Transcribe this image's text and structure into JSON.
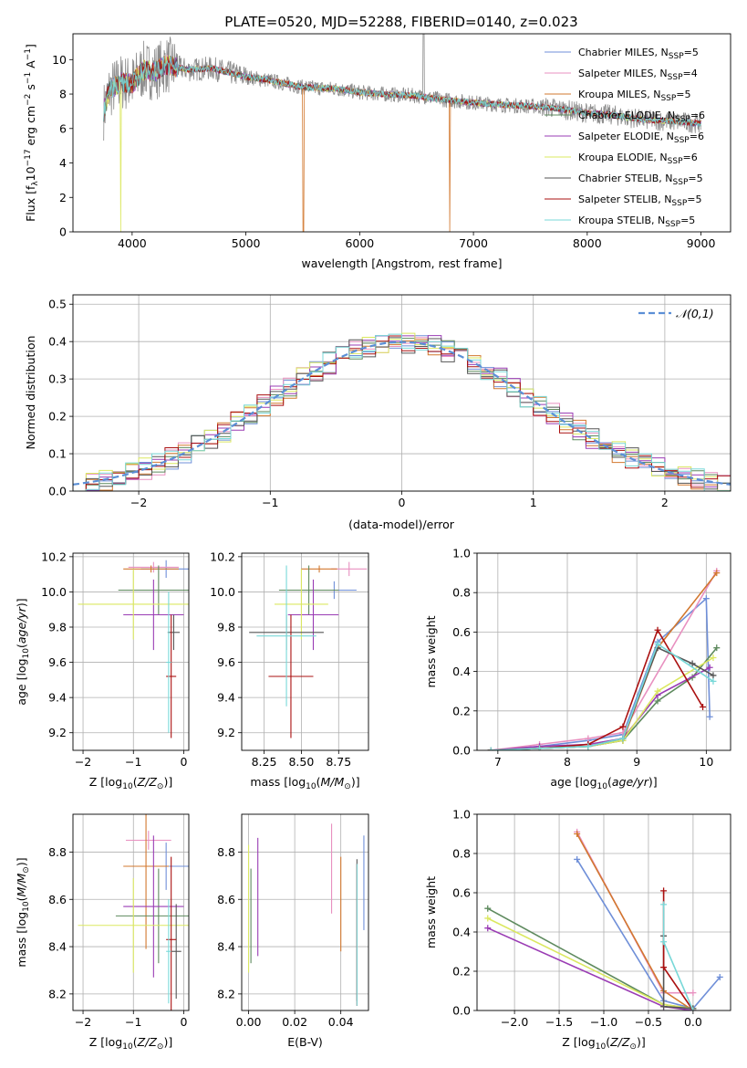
{
  "figure_title": "PLATE=0520, MJD=52288, FIBERID=0140, z=0.023",
  "colors": {
    "Chabrier MILES": "#6f8fd8",
    "Salpeter MILES": "#e890c0",
    "Kroupa MILES": "#d2782f",
    "Chabrier ELODIE": "#5e8a5e",
    "Salpeter ELODIE": "#9a3cb4",
    "Kroupa ELODIE": "#dbe860",
    "Chabrier STELIB": "#555555",
    "Salpeter STELIB": "#aa1010",
    "Kroupa STELIB": "#78d8d8",
    "gauss": "#5b8fd6",
    "data": "#8c8c8c"
  },
  "chart_data": [
    {
      "type": "line",
      "title": "PLATE=0520, MJD=52288, FIBERID=0140, z=0.023",
      "xlabel": "wavelength [Angstrom, rest frame]",
      "ylabel_parts": [
        "Flux [f",
        "λ",
        "10",
        "−17",
        " erg cm",
        "−2",
        " s",
        "−1",
        " A",
        "−1",
        "]"
      ],
      "xlim": [
        3480,
        9260
      ],
      "ylim": [
        0,
        11.5
      ],
      "xticks": [
        4000,
        5000,
        6000,
        7000,
        8000,
        9000
      ],
      "yticks": [
        0,
        2,
        4,
        6,
        8,
        10
      ],
      "legend_position": "top-right",
      "legend": [
        {
          "name": "Chabrier MILES",
          "nssp": "5"
        },
        {
          "name": "Salpeter MILES",
          "nssp": "4"
        },
        {
          "name": "Kroupa MILES",
          "nssp": "5"
        },
        {
          "name": "Chabrier ELODIE",
          "nssp": "6"
        },
        {
          "name": "Salpeter ELODIE",
          "nssp": "6"
        },
        {
          "name": "Kroupa ELODIE",
          "nssp": "6"
        },
        {
          "name": "Chabrier STELIB",
          "nssp": "5"
        },
        {
          "name": "Salpeter STELIB",
          "nssp": "5"
        },
        {
          "name": "Kroupa STELIB",
          "nssp": "5"
        }
      ],
      "legend_nssp_label": [
        "N",
        "SSP",
        "="
      ],
      "model_curve": {
        "x": [
          3750,
          3800,
          3900,
          4000,
          4100,
          4200,
          4300,
          4500,
          4700,
          5000,
          5200,
          5500,
          5800,
          6000,
          6200,
          6500,
          6700,
          7000,
          7300,
          7500,
          7700,
          8000,
          8200,
          8500,
          8800,
          9000
        ],
        "y": [
          7.0,
          8.2,
          8.7,
          8.6,
          9.4,
          9.3,
          9.7,
          9.4,
          9.5,
          9.0,
          8.8,
          8.4,
          8.3,
          8.1,
          8.0,
          7.9,
          7.7,
          7.5,
          7.35,
          7.3,
          7.2,
          6.9,
          6.8,
          6.5,
          6.4,
          6.3
        ]
      },
      "data_noise": {
        "x_start": 3750,
        "x_end": 9000,
        "step": 4
      },
      "absorption_features": [
        {
          "x": 3900,
          "series": "Kroupa ELODIE",
          "depth": 0
        },
        {
          "x": 5505,
          "series": "Kroupa MILES",
          "depth": 0
        },
        {
          "x": 6790,
          "series": "Kroupa MILES",
          "depth": 0
        },
        {
          "x": 7420,
          "series": "Kroupa MILES",
          "depth": 0.5
        }
      ]
    },
    {
      "type": "step",
      "xlabel": "(data-model)/error",
      "ylabel": "Normed distribution",
      "xlim": [
        -2.5,
        2.5
      ],
      "ylim": [
        0,
        0.525
      ],
      "xticks": [
        -2,
        -1,
        0,
        1,
        2
      ],
      "yticks": [
        0.0,
        0.1,
        0.2,
        0.3,
        0.4,
        0.5
      ],
      "grid": true,
      "bin_width": 0.1,
      "reference": {
        "name": "𝒩(0,1)",
        "mean": 0,
        "sigma": 1,
        "style": "dashed"
      },
      "legend_position": "top-right"
    },
    {
      "type": "scatter",
      "xlabel_parts": [
        "Z [log",
        "10",
        "(",
        "Z/Z",
        "⊙",
        ")]"
      ],
      "ylabel_parts": [
        "age  [log",
        "10",
        "(",
        "age/yr",
        ")]"
      ],
      "xlim": [
        -2.2,
        0.1
      ],
      "ylim": [
        9.1,
        10.22
      ],
      "xticks": [
        -2,
        -1,
        0
      ],
      "yticks": [
        9.2,
        9.4,
        9.6,
        9.8,
        10.0,
        10.2
      ],
      "points": [
        {
          "series": "Chabrier MILES",
          "x": -0.35,
          "xerr": 0.5,
          "y": 10.13,
          "yerr": 0.05
        },
        {
          "series": "Salpeter MILES",
          "x": -0.6,
          "xerr": 0.5,
          "y": 10.14,
          "yerr": 0.03
        },
        {
          "series": "Kroupa MILES",
          "x": -0.65,
          "xerr": 0.55,
          "y": 10.13,
          "yerr": 0.02
        },
        {
          "series": "Chabrier ELODIE",
          "x": -0.5,
          "xerr": 0.8,
          "y": 10.01,
          "yerr": 0.14
        },
        {
          "series": "Salpeter ELODIE",
          "x": -0.6,
          "xerr": 0.6,
          "y": 9.87,
          "yerr": 0.2
        },
        {
          "series": "Kroupa ELODIE",
          "x": -1.0,
          "xerr": 1.1,
          "y": 9.93,
          "yerr": 0.2
        },
        {
          "series": "Chabrier STELIB",
          "x": -0.2,
          "xerr": 0.12,
          "y": 9.77,
          "yerr": 0.1
        },
        {
          "series": "Salpeter STELIB",
          "x": -0.25,
          "xerr": 0.1,
          "y": 9.52,
          "yerr": 0.35
        },
        {
          "series": "Kroupa STELIB",
          "x": -0.3,
          "xerr": 0.05,
          "y": 9.6,
          "yerr": 0.4
        }
      ]
    },
    {
      "type": "scatter",
      "xlabel_parts": [
        "mass [log",
        "10",
        "(",
        "M/M",
        "⊙",
        ")]"
      ],
      "ylabel": "",
      "xlim": [
        8.1,
        8.95
      ],
      "ylim": [
        9.1,
        10.22
      ],
      "xticks": [
        8.25,
        8.5,
        8.75
      ],
      "yticks": [
        9.2,
        9.4,
        9.6,
        9.8,
        10.0,
        10.2
      ],
      "points": [
        {
          "series": "Chabrier MILES",
          "x": 8.72,
          "xerr": 0.15,
          "y": 10.01,
          "yerr": 0.05
        },
        {
          "series": "Salpeter MILES",
          "x": 8.82,
          "xerr": 0.12,
          "y": 10.13,
          "yerr": 0.04
        },
        {
          "series": "Kroupa MILES",
          "x": 8.62,
          "xerr": 0.12,
          "y": 10.13,
          "yerr": 0.02
        },
        {
          "series": "Chabrier ELODIE",
          "x": 8.55,
          "xerr": 0.2,
          "y": 10.01,
          "yerr": 0.14
        },
        {
          "series": "Salpeter ELODIE",
          "x": 8.58,
          "xerr": 0.17,
          "y": 9.87,
          "yerr": 0.2
        },
        {
          "series": "Kroupa ELODIE",
          "x": 8.5,
          "xerr": 0.18,
          "y": 9.93,
          "yerr": 0.2
        },
        {
          "series": "Chabrier STELIB",
          "x": 8.4,
          "xerr": 0.25,
          "y": 9.77,
          "yerr": 0.1
        },
        {
          "series": "Salpeter STELIB",
          "x": 8.43,
          "xerr": 0.15,
          "y": 9.52,
          "yerr": 0.35
        },
        {
          "series": "Kroupa STELIB",
          "x": 8.4,
          "xerr": 0.2,
          "y": 9.75,
          "yerr": 0.4
        }
      ]
    },
    {
      "type": "line",
      "xlabel_parts": [
        "age  [log",
        "10",
        "(",
        "age/yr",
        ")]"
      ],
      "ylabel": "mass weight",
      "xlim": [
        6.7,
        10.35
      ],
      "ylim": [
        0,
        1.0
      ],
      "xticks": [
        7,
        8,
        9,
        10
      ],
      "yticks": [
        0.0,
        0.2,
        0.4,
        0.6,
        0.8,
        1.0
      ],
      "grid": true,
      "series": [
        {
          "name": "Chabrier MILES",
          "x": [
            6.9,
            7.6,
            8.3,
            8.8,
            9.3,
            10.0,
            10.05
          ],
          "y": [
            0.0,
            0.02,
            0.05,
            0.08,
            0.55,
            0.77,
            0.17
          ]
        },
        {
          "name": "Salpeter MILES",
          "x": [
            6.9,
            7.6,
            8.3,
            8.8,
            10.15
          ],
          "y": [
            0.0,
            0.03,
            0.06,
            0.09,
            0.91
          ]
        },
        {
          "name": "Kroupa MILES",
          "x": [
            6.9,
            7.6,
            8.3,
            8.8,
            9.3,
            10.15
          ],
          "y": [
            0.0,
            0.01,
            0.02,
            0.05,
            0.52,
            0.9
          ]
        },
        {
          "name": "Chabrier ELODIE",
          "x": [
            6.9,
            7.6,
            8.3,
            8.8,
            9.3,
            9.8,
            10.15
          ],
          "y": [
            0.0,
            0.01,
            0.02,
            0.05,
            0.25,
            0.37,
            0.52
          ]
        },
        {
          "name": "Salpeter ELODIE",
          "x": [
            6.9,
            7.6,
            8.3,
            8.8,
            9.3,
            10.05
          ],
          "y": [
            0.0,
            0.02,
            0.03,
            0.06,
            0.28,
            0.42
          ]
        },
        {
          "name": "Kroupa ELODIE",
          "x": [
            6.9,
            7.6,
            8.3,
            8.8,
            9.3,
            10.1
          ],
          "y": [
            0.0,
            0.01,
            0.02,
            0.05,
            0.3,
            0.47
          ]
        },
        {
          "name": "Chabrier STELIB",
          "x": [
            6.9,
            7.6,
            8.3,
            8.8,
            9.3,
            9.8,
            10.1
          ],
          "y": [
            0.0,
            0.01,
            0.02,
            0.06,
            0.52,
            0.44,
            0.38
          ]
        },
        {
          "name": "Salpeter STELIB",
          "x": [
            6.9,
            7.6,
            8.3,
            8.8,
            9.3,
            9.95
          ],
          "y": [
            0.0,
            0.01,
            0.03,
            0.12,
            0.61,
            0.22
          ]
        },
        {
          "name": "Kroupa STELIB",
          "x": [
            6.9,
            7.6,
            8.3,
            8.8,
            9.3,
            10.1
          ],
          "y": [
            0.0,
            0.01,
            0.02,
            0.06,
            0.54,
            0.35
          ]
        }
      ]
    },
    {
      "type": "scatter",
      "xlabel_parts": [
        "Z [log",
        "10",
        "(",
        "Z/Z",
        "⊙",
        ")]"
      ],
      "ylabel_parts": [
        "mass [log",
        "10",
        "(",
        "M/M",
        "⊙",
        ")]"
      ],
      "xlim": [
        -2.2,
        0.1
      ],
      "ylim": [
        8.13,
        8.96
      ],
      "xticks": [
        -2,
        -1,
        0
      ],
      "yticks": [
        8.2,
        8.4,
        8.6,
        8.8
      ],
      "points": [
        {
          "series": "Chabrier MILES",
          "x": -0.35,
          "xerr": 0.5,
          "y": 8.74,
          "yerr": 0.1
        },
        {
          "series": "Salpeter MILES",
          "x": -0.7,
          "xerr": 0.45,
          "y": 8.85,
          "yerr": 0.04
        },
        {
          "series": "Kroupa MILES",
          "x": -0.75,
          "xerr": 0.45,
          "y": 8.74,
          "yerr": 0.35
        },
        {
          "series": "Chabrier ELODIE",
          "x": -0.5,
          "xerr": 0.85,
          "y": 8.53,
          "yerr": 0.2
        },
        {
          "series": "Salpeter ELODIE",
          "x": -0.6,
          "xerr": 0.6,
          "y": 8.57,
          "yerr": 0.3
        },
        {
          "series": "Kroupa ELODIE",
          "x": -1.0,
          "xerr": 1.1,
          "y": 8.49,
          "yerr": 0.2
        },
        {
          "series": "Chabrier STELIB",
          "x": -0.15,
          "xerr": 0.1,
          "y": 8.38,
          "yerr": 0.2
        },
        {
          "series": "Salpeter STELIB",
          "x": -0.25,
          "xerr": 0.1,
          "y": 8.43,
          "yerr": 0.35
        },
        {
          "series": "Kroupa STELIB",
          "x": -0.3,
          "xerr": 0.05,
          "y": 8.38,
          "yerr": 0.22
        }
      ]
    },
    {
      "type": "scatter",
      "xlabel": "E(B-V)",
      "ylabel": "",
      "xlim": [
        -0.003,
        0.052
      ],
      "ylim": [
        8.13,
        8.96
      ],
      "xticks": [
        0.0,
        0.02,
        0.04
      ],
      "yticks": [
        8.2,
        8.4,
        8.6,
        8.8
      ],
      "points": [
        {
          "series": "Chabrier MILES",
          "x": 0.05,
          "y": 8.67,
          "yerr": 0.2
        },
        {
          "series": "Salpeter MILES",
          "x": 0.036,
          "y": 8.73,
          "yerr": 0.19
        },
        {
          "series": "Kroupa MILES",
          "x": 0.04,
          "y": 8.58,
          "yerr": 0.2
        },
        {
          "series": "Chabrier ELODIE",
          "x": 0.001,
          "y": 8.53,
          "yerr": 0.2
        },
        {
          "series": "Salpeter ELODIE",
          "x": 0.004,
          "y": 8.61,
          "yerr": 0.25
        },
        {
          "series": "Kroupa ELODIE",
          "x": 0.0,
          "y": 8.56,
          "yerr": 0.27
        },
        {
          "series": "Chabrier STELIB",
          "x": 0.047,
          "y": 8.47,
          "yerr": 0.3
        },
        {
          "series": "Salpeter STELIB",
          "x": 0.047,
          "y": 8.45,
          "yerr": 0.3
        },
        {
          "series": "Kroupa STELIB",
          "x": 0.047,
          "y": 8.45,
          "yerr": 0.3
        }
      ]
    },
    {
      "type": "line",
      "xlabel_parts": [
        "Z [log",
        "10",
        "(",
        "Z/Z",
        "⊙",
        ")]"
      ],
      "ylabel": "mass weight",
      "xlim": [
        -2.42,
        0.42
      ],
      "ylim": [
        0,
        1.0
      ],
      "xticks": [
        -2.0,
        -1.5,
        -1.0,
        -0.5,
        0.0
      ],
      "yticks": [
        0.0,
        0.2,
        0.4,
        0.6,
        0.8,
        1.0
      ],
      "grid": true,
      "series": [
        {
          "name": "Chabrier MILES",
          "x": [
            -1.3,
            -0.33,
            0.0,
            0.3
          ],
          "y": [
            0.77,
            0.05,
            0.01,
            0.17
          ]
        },
        {
          "name": "Salpeter MILES",
          "x": [
            -1.3,
            -0.33,
            0.0
          ],
          "y": [
            0.91,
            0.09,
            0.09
          ]
        },
        {
          "name": "Kroupa MILES",
          "x": [
            -1.3,
            -0.33,
            0.0
          ],
          "y": [
            0.9,
            0.1,
            0.0
          ]
        },
        {
          "name": "Chabrier ELODIE",
          "x": [
            -2.3,
            -0.33,
            0.0
          ],
          "y": [
            0.52,
            0.03,
            0.01
          ]
        },
        {
          "name": "Salpeter ELODIE",
          "x": [
            -2.3,
            -0.33,
            0.0
          ],
          "y": [
            0.42,
            0.02,
            0.0
          ]
        },
        {
          "name": "Kroupa ELODIE",
          "x": [
            -2.3,
            -0.33,
            0.0
          ],
          "y": [
            0.47,
            0.03,
            0.01
          ]
        },
        {
          "name": "Chabrier STELIB",
          "x": [
            -0.33,
            -0.33,
            0.0
          ],
          "y": [
            0.38,
            0.02,
            0.01
          ]
        },
        {
          "name": "Salpeter STELIB",
          "x": [
            -0.33,
            -0.33,
            0.0
          ],
          "y": [
            0.61,
            0.22,
            0.0
          ]
        },
        {
          "name": "Kroupa STELIB",
          "x": [
            -0.33,
            -0.33,
            0.0
          ],
          "y": [
            0.54,
            0.35,
            0.0
          ]
        }
      ]
    }
  ]
}
